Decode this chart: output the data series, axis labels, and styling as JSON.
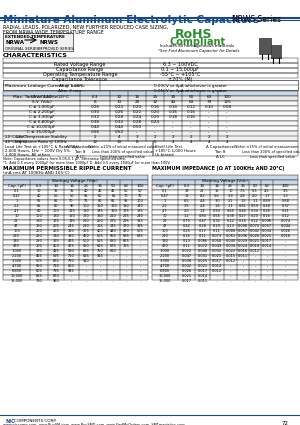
{
  "title": "Miniature Aluminum Electrolytic Capacitors",
  "series": "NRWS Series",
  "subtitle1": "RADIAL LEADS, POLARIZED, NEW FURTHER REDUCED CASE SIZING,",
  "subtitle2": "FROM NRWA WIDE TEMPERATURE RANGE",
  "rohs_line1": "RoHS",
  "rohs_line2": "Compliant",
  "rohs_line3": "Includes all homogeneous materials",
  "rohs_line4": "*See Find Aluminum Capacitor for Details",
  "ext_temp": "EXTENDED TEMPERATURE",
  "nrwa_label": "NRWA",
  "nrws_label": "NRWS",
  "nrwa_sub": "ORIGINAL SERIES",
  "nrws_sub": "IMPROVED SERIES",
  "char_title": "CHARACTERISTICS",
  "char_rows": [
    [
      "Rated Voltage Range",
      "6.3 ~ 100VDC"
    ],
    [
      "Capacitance Range",
      "0.1 ~ 15,000μF"
    ],
    [
      "Operating Temperature Range",
      "-55°C ~ +105°C"
    ],
    [
      "Capacitance Tolerance",
      "±20% (M)"
    ]
  ],
  "leak_title": "Maximum Leakage Current @ ±20%:",
  "leak_after1min": "After 1 min",
  "leak_val1": "0.03CV or 4μA whichever is greater",
  "leak_after2min": "After 2 min",
  "leak_val2": "0.01CV or 3μA whichever is greater",
  "tan_title": "Max. Tan δ at 120Hz/20°C",
  "tan_header": [
    "W.V. (Vdc)",
    "6.3",
    "10",
    "16",
    "25",
    "35",
    "50",
    "63",
    "100"
  ],
  "tan_sv": [
    "S.V. (Vdc)",
    "8",
    "13",
    "20",
    "32",
    "44",
    "63",
    "79",
    "125"
  ],
  "tan_rows": [
    [
      "C ≤ 1,000μF",
      "0.26",
      "0.24",
      "0.20",
      "0.16",
      "0.14",
      "0.12",
      "0.10",
      "0.08"
    ],
    [
      "C ≤ 2,200μF",
      "0.30",
      "0.26",
      "0.22",
      "0.20",
      "0.16",
      "0.16",
      "-",
      "-"
    ],
    [
      "C ≤ 3,300μF",
      "0.32",
      "0.28",
      "0.24",
      "0.20",
      "0.18",
      "0.16",
      "-",
      "-"
    ],
    [
      "C ≤ 6,800μF",
      "0.36",
      "0.32",
      "0.28",
      "0.24",
      "-",
      "-",
      "-",
      "-"
    ],
    [
      "C ≤ 10,000μF",
      "0.44",
      "0.44",
      "0.50",
      "-",
      "-",
      "-",
      "-",
      "-"
    ],
    [
      "C ≤ 15,000μF",
      "0.56",
      "0.52",
      "-",
      "-",
      "-",
      "-",
      "-",
      "-"
    ]
  ],
  "low_temp_header": [
    "2.0°C/20°C",
    "2",
    "4",
    "3",
    "2",
    "2",
    "2",
    "2",
    "2"
  ],
  "low_temp_header2": [
    "4.0°C/20°C",
    "12",
    "10",
    "8",
    "5",
    "4",
    "4",
    "4",
    "4"
  ],
  "load_rows": [
    [
      "Δ Capacitance",
      "Within ±20% of initial measured value"
    ],
    [
      "Tan δ",
      "Less than 200% of specified value"
    ],
    [
      "Δ LC",
      "Less than specified value"
    ]
  ],
  "shelf_rows": [
    [
      "Δ Capacitance",
      "Within ±15% of initial measurement value"
    ],
    [
      "Tan δ",
      "Less than 200% of specified value"
    ],
    [
      "Δ LC",
      "Less than specified value"
    ]
  ],
  "note1": "Note: Capacitance values from 0.05-0.1 μF, otherwise specified here.",
  "note2": "*1. Add 0.5 every 1000μF for more than 1000μF D. Add 0.5 every 1000μF for more than 100V.",
  "ripple_title": "MAXIMUM PERMISSIBLE RIPPLE CURRENT",
  "ripple_subtitle": "(mA rms AT 100KHz AND 105°C)",
  "ripple_header": [
    "Cap. (μF)",
    "6.3",
    "10",
    "16",
    "25",
    "35",
    "50",
    "63",
    "100"
  ],
  "ripple_rows": [
    [
      "0.1",
      "30",
      "35",
      "35",
      "40",
      "45",
      "45",
      "50",
      "50"
    ],
    [
      "0.47",
      "40",
      "50",
      "50",
      "55",
      "60",
      "65",
      "70",
      "75"
    ],
    [
      "1",
      "55",
      "65",
      "70",
      "75",
      "80",
      "85",
      "95",
      "100"
    ],
    [
      "2.2",
      "65",
      "80",
      "90",
      "100",
      "110",
      "120",
      "130",
      "140"
    ],
    [
      "4.7",
      "80",
      "100",
      "115",
      "130",
      "145",
      "160",
      "175",
      "185"
    ],
    [
      "10",
      "100",
      "130",
      "150",
      "170",
      "190",
      "210",
      "225",
      "240"
    ],
    [
      "22",
      "130",
      "165",
      "195",
      "220",
      "250",
      "275",
      "295",
      "315"
    ],
    [
      "47",
      "160",
      "205",
      "245",
      "280",
      "315",
      "345",
      "370",
      "395"
    ],
    [
      "100",
      "200",
      "260",
      "310",
      "355",
      "400",
      "440",
      "470",
      "505"
    ],
    [
      "220",
      "250",
      "330",
      "390",
      "450",
      "505",
      "555",
      "595",
      "635"
    ],
    [
      "330",
      "280",
      "365",
      "435",
      "500",
      "565",
      "620",
      "665",
      "-"
    ],
    [
      "470",
      "305",
      "400",
      "475",
      "550",
      "615",
      "675",
      "725",
      "-"
    ],
    [
      "1,000",
      "370",
      "485",
      "580",
      "665",
      "750",
      "820",
      "-",
      "-"
    ],
    [
      "2,200",
      "455",
      "595",
      "710",
      "815",
      "915",
      "-",
      "-",
      "-"
    ],
    [
      "3,300",
      "505",
      "665",
      "790",
      "910",
      "-",
      "-",
      "-",
      "-"
    ],
    [
      "4,700",
      "550",
      "720",
      "860",
      "-",
      "-",
      "-",
      "-",
      "-"
    ],
    [
      "6,800",
      "605",
      "795",
      "945",
      "-",
      "-",
      "-",
      "-",
      "-"
    ],
    [
      "10,000",
      "665",
      "870",
      "-",
      "-",
      "-",
      "-",
      "-",
      "-"
    ],
    [
      "15,000",
      "730",
      "960",
      "-",
      "-",
      "-",
      "-",
      "-",
      "-"
    ]
  ],
  "impedance_title": "MAXIMUM IMPEDANCE (Ω AT 100KHz AND 20°C)",
  "impedance_header": [
    "Cap. (μF)",
    "6.3",
    "10",
    "16",
    "25",
    "35",
    "50",
    "63",
    "100"
  ],
  "impedance_rows": [
    [
      "0.1",
      "33",
      "22",
      "15",
      "10",
      "7.5",
      "5.5",
      "4.5",
      "3.5"
    ],
    [
      "0.47",
      "12",
      "8.2",
      "5.6",
      "3.9",
      "2.8",
      "2.0",
      "1.7",
      "1.3"
    ],
    [
      "1",
      "6.5",
      "4.4",
      "3.0",
      "2.1",
      "1.5",
      "1.1",
      "0.89",
      "0.68"
    ],
    [
      "2.2",
      "3.5",
      "2.4",
      "1.6",
      "1.1",
      "0.81",
      "0.59",
      "0.48",
      "0.37"
    ],
    [
      "4.7",
      "2.0",
      "1.4",
      "0.93",
      "0.65",
      "0.46",
      "0.34",
      "0.28",
      "0.21"
    ],
    [
      "10",
      "1.2",
      "0.80",
      "0.55",
      "0.38",
      "0.27",
      "0.20",
      "0.16",
      "0.12"
    ],
    [
      "22",
      "0.70",
      "0.47",
      "0.32",
      "0.22",
      "0.16",
      "0.12",
      "0.096",
      "0.074"
    ],
    [
      "47",
      "0.42",
      "0.28",
      "0.19",
      "0.13",
      "0.096",
      "0.070",
      "0.057",
      "0.044"
    ],
    [
      "100",
      "0.25",
      "0.17",
      "0.11",
      "0.080",
      "0.057",
      "0.042",
      "0.034",
      "0.026"
    ],
    [
      "220",
      "0.16",
      "0.11",
      "0.073",
      "0.051",
      "0.036",
      "0.026",
      "0.021",
      "0.016"
    ],
    [
      "330",
      "0.13",
      "0.086",
      "0.058",
      "0.040",
      "0.029",
      "0.021",
      "0.017",
      "-"
    ],
    [
      "470",
      "0.11",
      "0.072",
      "0.049",
      "0.034",
      "0.024",
      "0.018",
      "0.014",
      "-"
    ],
    [
      "1,000",
      "0.072",
      "0.048",
      "0.032",
      "0.022",
      "0.016",
      "0.012",
      "-",
      "-"
    ],
    [
      "2,200",
      "0.047",
      "0.031",
      "0.021",
      "0.015",
      "0.011",
      "-",
      "-",
      "-"
    ],
    [
      "3,300",
      "0.038",
      "0.025",
      "0.017",
      "0.012",
      "-",
      "-",
      "-",
      "-"
    ],
    [
      "4,700",
      "0.032",
      "0.021",
      "0.014",
      "-",
      "-",
      "-",
      "-",
      "-"
    ],
    [
      "6,800",
      "0.026",
      "0.017",
      "0.012",
      "-",
      "-",
      "-",
      "-",
      "-"
    ],
    [
      "10,000",
      "0.021",
      "0.014",
      "-",
      "-",
      "-",
      "-",
      "-",
      "-"
    ],
    [
      "15,000",
      "0.017",
      "0.011",
      "-",
      "-",
      "-",
      "-",
      "-",
      "-"
    ]
  ],
  "footer_nic": "NIC",
  "footer_corp": "COMPONENTS CORP.",
  "footer_web": "www.niccomp.com  www.BuySM.com  www.BuySMD.com  www.FindMyOrders.com  SMTmagistics.com",
  "page_num": "72",
  "bg_color": "#ffffff",
  "header_blue": "#1a4a8a",
  "table_header_bg": "#c8d8e8",
  "title_color": "#1a4a8a",
  "rohs_color": "#2e8b2e"
}
